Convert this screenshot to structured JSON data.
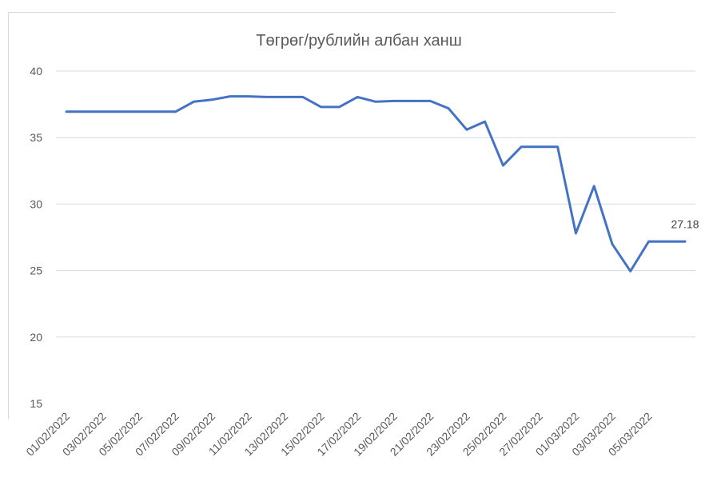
{
  "chart_data": {
    "type": "line",
    "title": "Төгрөг/рублийн албан ханш",
    "xlabel": "",
    "ylabel": "",
    "ylim": [
      15,
      40
    ],
    "yticks": [
      15,
      20,
      25,
      30,
      35,
      40
    ],
    "grid": true,
    "x": [
      "01/02/2022",
      "02/02/2022",
      "03/02/2022",
      "04/02/2022",
      "05/02/2022",
      "06/02/2022",
      "07/02/2022",
      "08/02/2022",
      "09/02/2022",
      "10/02/2022",
      "11/02/2022",
      "12/02/2022",
      "13/02/2022",
      "14/02/2022",
      "15/02/2022",
      "16/02/2022",
      "17/02/2022",
      "18/02/2022",
      "19/02/2022",
      "20/02/2022",
      "21/02/2022",
      "22/02/2022",
      "23/02/2022",
      "24/02/2022",
      "25/02/2022",
      "26/02/2022",
      "27/02/2022",
      "28/02/2022",
      "01/03/2022",
      "02/03/2022",
      "03/03/2022",
      "04/03/2022",
      "05/03/2022",
      "06/03/2022",
      "07/03/2022"
    ],
    "xtick_labels": [
      "01/02/2022",
      "03/02/2022",
      "05/02/2022",
      "07/02/2022",
      "09/02/2022",
      "11/02/2022",
      "13/02/2022",
      "15/02/2022",
      "17/02/2022",
      "19/02/2022",
      "21/02/2022",
      "23/02/2022",
      "25/02/2022",
      "27/02/2022",
      "01/03/2022",
      "03/03/2022",
      "05/03/2022"
    ],
    "series": [
      {
        "color": "#4472c4",
        "values": [
          36.95,
          36.95,
          36.95,
          36.95,
          36.95,
          36.95,
          36.95,
          37.7,
          37.85,
          38.1,
          38.1,
          38.05,
          38.05,
          38.05,
          37.3,
          37.3,
          38.05,
          37.7,
          37.75,
          37.75,
          37.75,
          37.2,
          35.6,
          36.2,
          32.9,
          34.3,
          34.3,
          34.3,
          27.8,
          31.35,
          27.0,
          24.95,
          27.18,
          27.18,
          27.18
        ]
      }
    ],
    "data_labels": [
      {
        "index": 34,
        "text": "27.18"
      }
    ]
  }
}
